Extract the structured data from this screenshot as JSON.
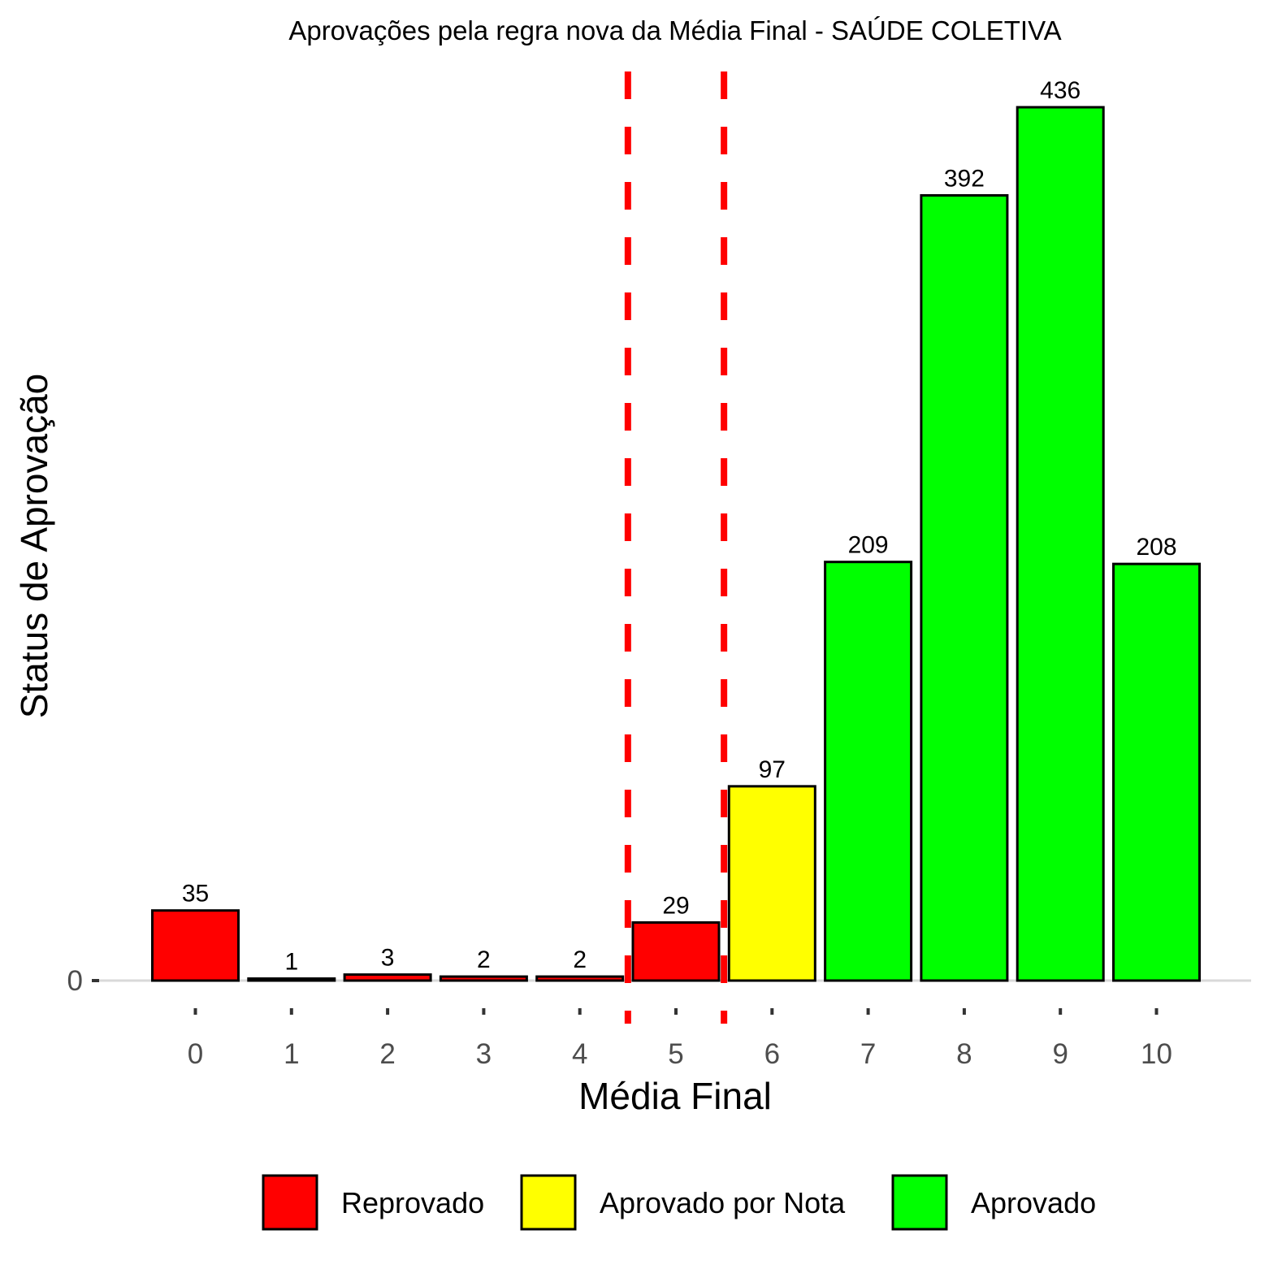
{
  "chart_data": {
    "type": "bar",
    "title": "Aprovações pela regra nova da Média Final - SAÚDE COLETIVA",
    "xlabel": "Média Final",
    "ylabel": "Status de Aprovação",
    "categories": [
      "0",
      "1",
      "2",
      "3",
      "4",
      "5",
      "6",
      "7",
      "8",
      "9",
      "10"
    ],
    "values": [
      35,
      1,
      3,
      2,
      2,
      29,
      97,
      209,
      392,
      436,
      208
    ],
    "status": [
      "Reprovado",
      "Reprovado",
      "Reprovado",
      "Reprovado",
      "Reprovado",
      "Reprovado",
      "Aprovado por Nota",
      "Aprovado",
      "Aprovado",
      "Aprovado",
      "Aprovado"
    ],
    "y_ticks": [
      0
    ],
    "ylim": [
      0,
      440
    ],
    "reference_lines_x": [
      4.5,
      5.5
    ],
    "reference_line_color": "#ff0000",
    "grid": false,
    "legend_position": "bottom",
    "legend": [
      {
        "name": "Reprovado",
        "color": "#ff0000"
      },
      {
        "name": "Aprovado por Nota",
        "color": "#ffff00"
      },
      {
        "name": "Aprovado",
        "color": "#00ff00"
      }
    ]
  }
}
